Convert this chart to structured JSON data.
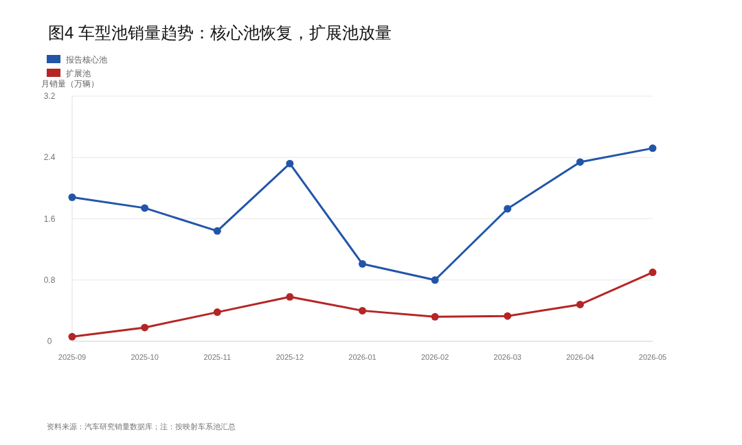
{
  "chart_data": {
    "type": "line",
    "title": "图4 车型池销量趋势：核心池恢复，扩展池放量",
    "ylabel": "月销量（万辆）",
    "categories": [
      "2025-09",
      "2025-10",
      "2025-11",
      "2025-12",
      "2026-01",
      "2026-02",
      "2026-03",
      "2026-04",
      "2026-05"
    ],
    "series": [
      {
        "name": "报告核心池",
        "color": "#2255a8",
        "values": [
          1.88,
          1.74,
          1.44,
          2.32,
          1.01,
          0.8,
          1.73,
          2.34,
          2.52
        ]
      },
      {
        "name": "扩展池",
        "color": "#b52525",
        "values": [
          0.06,
          0.18,
          0.38,
          0.58,
          0.4,
          0.32,
          0.33,
          0.48,
          0.9
        ]
      }
    ],
    "ylim": [
      0,
      3.2
    ],
    "yticks": [
      0,
      0.8,
      1.6,
      2.4,
      3.2
    ],
    "grid": "y",
    "legend": "top left",
    "marker": "circle",
    "line_style": "solid",
    "annotations": [
      "资料来源：汽车研究销量数据库；注：按映射车系池汇总"
    ]
  }
}
